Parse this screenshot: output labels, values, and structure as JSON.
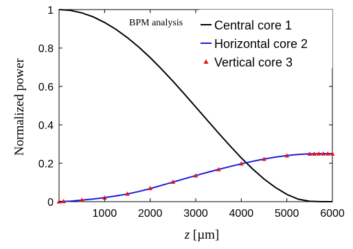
{
  "chart_data": {
    "type": "line",
    "title": "",
    "annotation": "BPM analysis",
    "xlabel_var": "z",
    "xlabel_unit": " [µm]",
    "ylabel": "Normalized power",
    "xlim": [
      0,
      6000
    ],
    "ylim": [
      0,
      1
    ],
    "xticks": [
      1000,
      2000,
      3000,
      4000,
      5000,
      6000
    ],
    "yticks": [
      0,
      0.2,
      0.4,
      0.6,
      0.8,
      1
    ],
    "ytick_labels": [
      "0",
      "0.2",
      "0.4",
      "0.6",
      "0.8",
      "1"
    ],
    "grid": false,
    "legend_position": "top-right",
    "series": [
      {
        "name": "Central core 1",
        "style": "line",
        "color": "#000000",
        "x": [
          0,
          250,
          500,
          750,
          1000,
          1250,
          1500,
          1750,
          2000,
          2250,
          2500,
          2750,
          3000,
          3250,
          3500,
          3750,
          4000,
          4250,
          4500,
          4750,
          5000,
          5250,
          5500,
          5750,
          6000
        ],
        "y": [
          1.0,
          0.996,
          0.983,
          0.962,
          0.933,
          0.897,
          0.854,
          0.805,
          0.75,
          0.69,
          0.627,
          0.561,
          0.493,
          0.425,
          0.357,
          0.291,
          0.228,
          0.17,
          0.118,
          0.074,
          0.038,
          0.013,
          0.002,
          0.0,
          0.0
        ]
      },
      {
        "name": "Horizontal core 2",
        "style": "line",
        "color": "#1a1adb",
        "x": [
          0,
          250,
          500,
          750,
          1000,
          1250,
          1500,
          1750,
          2000,
          2250,
          2500,
          2750,
          3000,
          3250,
          3500,
          3750,
          4000,
          4250,
          4500,
          4750,
          5000,
          5250,
          5500,
          5750,
          6000
        ],
        "y": [
          0.0,
          0.003,
          0.008,
          0.014,
          0.021,
          0.03,
          0.04,
          0.053,
          0.068,
          0.085,
          0.102,
          0.119,
          0.136,
          0.152,
          0.168,
          0.183,
          0.197,
          0.21,
          0.222,
          0.232,
          0.24,
          0.246,
          0.249,
          0.25,
          0.25
        ]
      },
      {
        "name": "Vertical core 3",
        "style": "marker",
        "color": "#e0161b",
        "x": [
          0,
          100,
          500,
          1000,
          1500,
          2000,
          2500,
          3000,
          3500,
          4000,
          4500,
          5000,
          5500,
          5600,
          5700,
          5800,
          5900,
          6000
        ],
        "y": [
          0.0,
          0.002,
          0.009,
          0.021,
          0.041,
          0.07,
          0.103,
          0.136,
          0.168,
          0.198,
          0.222,
          0.24,
          0.249,
          0.249,
          0.25,
          0.25,
          0.25,
          0.25
        ]
      }
    ]
  }
}
